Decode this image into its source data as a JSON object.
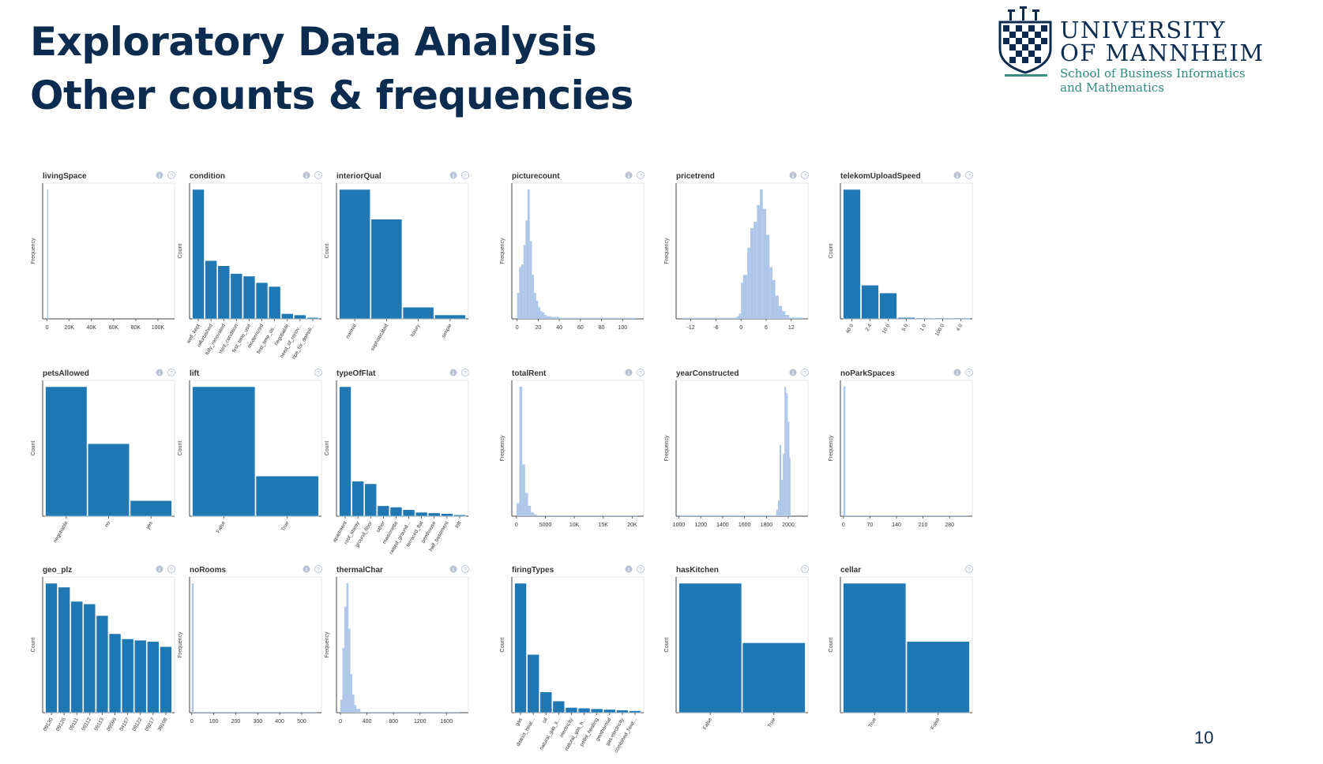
{
  "slide": {
    "title": "Exploratory Data Analysis",
    "subtitle": "Other counts & frequencies",
    "page_number": "10"
  },
  "logo": {
    "line1": "UNIVERSITY",
    "line2": "OF MANNHEIM",
    "line3": "School of Business Informatics",
    "line4": "and Mathematics"
  },
  "colors": {
    "bar": "#1f77b4",
    "hist": "#aec7e8",
    "title_text": "#0b2c4e"
  },
  "chart_data": [
    {
      "title": "livingSpace",
      "type": "bar",
      "ylabel": "Frequency",
      "xticks": [
        "0",
        "20K",
        "40K",
        "60K",
        "80K",
        "100K"
      ],
      "xrange": [
        -4000,
        115000
      ],
      "bins": [
        {
          "x0": 0,
          "x1": 1000,
          "v": 1
        }
      ],
      "ymax": 1,
      "icons": [
        "info",
        "help"
      ]
    },
    {
      "title": "condition",
      "type": "bar",
      "ylabel": "Count",
      "categories": [
        "well_kept",
        "refurbished",
        "fully_renovated",
        "mint_condition",
        "first_time_use",
        "modernized",
        "first_time_us...",
        "negotiable",
        "need_of_renov...",
        "ripe_for_demoli..."
      ],
      "values": [
        100,
        45,
        41,
        35,
        33,
        28,
        25,
        4,
        3,
        1
      ],
      "icons": [
        "info",
        "help"
      ]
    },
    {
      "title": "interiorQual",
      "type": "bar",
      "ylabel": "Count",
      "categories": [
        "normal",
        "sophisticated",
        "luxury",
        "simple"
      ],
      "values": [
        100,
        77,
        9,
        3
      ],
      "icons": [
        "info",
        "help"
      ]
    },
    {
      "title": "picturecount",
      "type": "bar",
      "ylabel": "Frequency",
      "xticks": [
        "0",
        "20",
        "40",
        "60",
        "80",
        "100"
      ],
      "xrange": [
        -5,
        120
      ],
      "bins": [
        {
          "x0": 0,
          "x1": 2,
          "v": 20
        },
        {
          "x0": 2,
          "x1": 4,
          "v": 40
        },
        {
          "x0": 4,
          "x1": 6,
          "v": 42
        },
        {
          "x0": 6,
          "x1": 8,
          "v": 57
        },
        {
          "x0": 8,
          "x1": 10,
          "v": 76
        },
        {
          "x0": 10,
          "x1": 12,
          "v": 100
        },
        {
          "x0": 12,
          "x1": 14,
          "v": 60
        },
        {
          "x0": 14,
          "x1": 16,
          "v": 34
        },
        {
          "x0": 16,
          "x1": 18,
          "v": 20
        },
        {
          "x0": 18,
          "x1": 20,
          "v": 14
        },
        {
          "x0": 20,
          "x1": 22,
          "v": 9
        },
        {
          "x0": 22,
          "x1": 24,
          "v": 6
        },
        {
          "x0": 24,
          "x1": 26,
          "v": 5
        },
        {
          "x0": 26,
          "x1": 28,
          "v": 3
        },
        {
          "x0": 28,
          "x1": 32,
          "v": 2
        },
        {
          "x0": 32,
          "x1": 40,
          "v": 1.5
        },
        {
          "x0": 40,
          "x1": 112,
          "v": 0.8
        }
      ],
      "ymax": 100,
      "icons": [
        "info",
        "help"
      ]
    },
    {
      "title": "pricetrend",
      "type": "bar",
      "ylabel": "Frequency",
      "xticks": [
        "-12",
        "-6",
        "0",
        "6",
        "12"
      ],
      "xrange": [
        -15.5,
        16
      ],
      "bins": [
        {
          "x0": -14,
          "x1": -1,
          "v": 0.8
        },
        {
          "x0": -1,
          "x1": -0.5,
          "v": 2
        },
        {
          "x0": -0.5,
          "x1": 0,
          "v": 4
        },
        {
          "x0": 0,
          "x1": 0.5,
          "v": 28
        },
        {
          "x0": 0.5,
          "x1": 1.5,
          "v": 34
        },
        {
          "x0": 1.5,
          "x1": 2.2,
          "v": 55
        },
        {
          "x0": 2.2,
          "x1": 3,
          "v": 70
        },
        {
          "x0": 3,
          "x1": 3.8,
          "v": 75
        },
        {
          "x0": 3.8,
          "x1": 4.5,
          "v": 88
        },
        {
          "x0": 4.5,
          "x1": 5.2,
          "v": 100
        },
        {
          "x0": 5.2,
          "x1": 6,
          "v": 85
        },
        {
          "x0": 6,
          "x1": 6.8,
          "v": 65
        },
        {
          "x0": 6.8,
          "x1": 7.5,
          "v": 40
        },
        {
          "x0": 7.5,
          "x1": 8.2,
          "v": 30
        },
        {
          "x0": 8.2,
          "x1": 9,
          "v": 18
        },
        {
          "x0": 9,
          "x1": 9.8,
          "v": 10
        },
        {
          "x0": 9.8,
          "x1": 10.6,
          "v": 6
        },
        {
          "x0": 10.6,
          "x1": 11.5,
          "v": 3
        },
        {
          "x0": 11.5,
          "x1": 15,
          "v": 1
        }
      ],
      "ymax": 100,
      "icons": [
        "info",
        "help"
      ]
    },
    {
      "title": "telekomUploadSpeed",
      "type": "bar",
      "ylabel": "Count",
      "categories": [
        "40.0",
        "2.4",
        "10.0",
        "5.0",
        "1.0",
        "100.0",
        "4.0"
      ],
      "values": [
        100,
        26,
        20,
        1,
        0.5,
        0.4,
        0.3
      ],
      "icons": [
        "info",
        "help"
      ]
    },
    {
      "title": "petsAllowed",
      "type": "bar",
      "ylabel": "Count",
      "categories": [
        "negotiable",
        "no",
        "yes"
      ],
      "values": [
        100,
        56,
        12
      ],
      "icons": [
        "info",
        "help"
      ]
    },
    {
      "title": "lift",
      "type": "bar",
      "ylabel": "Count",
      "categories": [
        "False",
        "True"
      ],
      "values": [
        100,
        31
      ],
      "icons": [
        "help"
      ]
    },
    {
      "title": "typeOfFlat",
      "type": "bar",
      "ylabel": "Count",
      "categories": [
        "apartment",
        "roof_storey",
        "ground_floor",
        "other",
        "maisonette",
        "raised_ground...",
        "terraced_flat",
        "penthouse",
        "half_basement",
        "loft"
      ],
      "values": [
        100,
        27,
        25,
        8,
        7,
        5,
        3,
        2.5,
        2,
        1
      ],
      "icons": [
        "info",
        "help"
      ]
    },
    {
      "title": "totalRent",
      "type": "bar",
      "ylabel": "Frequency",
      "xticks": [
        "0",
        "5000",
        "10K",
        "15K",
        "20K"
      ],
      "xrange": [
        -800,
        22000
      ],
      "bins": [
        {
          "x0": 0,
          "x1": 500,
          "v": 10
        },
        {
          "x0": 500,
          "x1": 1000,
          "v": 100
        },
        {
          "x0": 1000,
          "x1": 1500,
          "v": 40
        },
        {
          "x0": 1500,
          "x1": 2000,
          "v": 18
        },
        {
          "x0": 2000,
          "x1": 2500,
          "v": 8
        },
        {
          "x0": 2500,
          "x1": 3000,
          "v": 3
        },
        {
          "x0": 3000,
          "x1": 3500,
          "v": 1.5
        },
        {
          "x0": 3500,
          "x1": 21000,
          "v": 0.6
        }
      ],
      "ymax": 100,
      "icons": [
        "info",
        "help"
      ]
    },
    {
      "title": "yearConstructed",
      "type": "bar",
      "ylabel": "Frequency",
      "xticks": [
        "1000",
        "1200",
        "1400",
        "1600",
        "1800",
        "2000"
      ],
      "xrange": [
        975,
        2180
      ],
      "bins": [
        {
          "x0": 1000,
          "x1": 1890,
          "v": 0.7
        },
        {
          "x0": 1890,
          "x1": 1905,
          "v": 5
        },
        {
          "x0": 1905,
          "x1": 1920,
          "v": 12
        },
        {
          "x0": 1920,
          "x1": 1935,
          "v": 55
        },
        {
          "x0": 1935,
          "x1": 1950,
          "v": 28
        },
        {
          "x0": 1950,
          "x1": 1965,
          "v": 48
        },
        {
          "x0": 1965,
          "x1": 1980,
          "v": 100
        },
        {
          "x0": 1980,
          "x1": 1995,
          "v": 95
        },
        {
          "x0": 1995,
          "x1": 2010,
          "v": 73
        },
        {
          "x0": 2010,
          "x1": 2020,
          "v": 45
        }
      ],
      "ymax": 100,
      "icons": [
        "info",
        "help"
      ]
    },
    {
      "title": "noParkSpaces",
      "type": "bar",
      "ylabel": "Frequency",
      "xticks": [
        "0",
        "70",
        "140",
        "210",
        "280"
      ],
      "xrange": [
        -8,
        340
      ],
      "bins": [
        {
          "x0": 0,
          "x1": 5,
          "v": 100
        },
        {
          "x0": 5,
          "x1": 330,
          "v": 0.6
        }
      ],
      "ymax": 100,
      "icons": [
        "info",
        "help"
      ]
    },
    {
      "title": "geo_plz",
      "type": "bar",
      "ylabel": "Count",
      "categories": [
        "09130",
        "09126",
        "09111",
        "09112",
        "09113",
        "09599",
        "04157",
        "09122",
        "09217",
        "39108"
      ],
      "values": [
        100,
        97,
        86,
        84,
        75,
        61,
        57,
        56,
        55,
        51
      ],
      "icons": [
        "info",
        "help"
      ]
    },
    {
      "title": "noRooms",
      "type": "bar",
      "ylabel": "Frequency",
      "xticks": [
        "0",
        "100",
        "200",
        "300",
        "400",
        "500"
      ],
      "xrange": [
        -10,
        590
      ],
      "bins": [
        {
          "x0": 0,
          "x1": 8,
          "v": 100
        },
        {
          "x0": 8,
          "x1": 570,
          "v": 0.6
        }
      ],
      "ymax": 100,
      "icons": [
        "info",
        "help"
      ]
    },
    {
      "title": "thermalChar",
      "type": "bar",
      "ylabel": "Frequency",
      "xticks": [
        "0",
        "400",
        "800",
        "1200",
        "1600"
      ],
      "xrange": [
        -60,
        1930
      ],
      "bins": [
        {
          "x0": 0,
          "x1": 30,
          "v": 10
        },
        {
          "x0": 30,
          "x1": 60,
          "v": 50
        },
        {
          "x0": 60,
          "x1": 90,
          "v": 82
        },
        {
          "x0": 90,
          "x1": 120,
          "v": 100
        },
        {
          "x0": 120,
          "x1": 150,
          "v": 65
        },
        {
          "x0": 150,
          "x1": 180,
          "v": 30
        },
        {
          "x0": 180,
          "x1": 210,
          "v": 14
        },
        {
          "x0": 210,
          "x1": 240,
          "v": 6
        },
        {
          "x0": 240,
          "x1": 300,
          "v": 3
        },
        {
          "x0": 300,
          "x1": 1800,
          "v": 0.6
        }
      ],
      "ymax": 100,
      "icons": [
        "info",
        "help"
      ]
    },
    {
      "title": "firingTypes",
      "type": "bar",
      "ylabel": "Count",
      "categories": [
        "gas",
        "district_heat...",
        "oil",
        "natural_gas_li...",
        "electricity",
        "natural_gas_h...",
        "pellet_heating",
        "geothermal",
        "gas:electricity",
        "combined_heat..."
      ],
      "values": [
        100,
        45,
        16,
        9,
        4,
        3.5,
        3,
        2.5,
        2,
        1.5
      ],
      "icons": [
        "info",
        "help"
      ]
    },
    {
      "title": "hasKitchen",
      "type": "bar",
      "ylabel": "Count",
      "categories": [
        "False",
        "True"
      ],
      "values": [
        100,
        54
      ],
      "icons": [
        "help"
      ]
    },
    {
      "title": "cellar",
      "type": "bar",
      "ylabel": "Count",
      "categories": [
        "True",
        "False"
      ],
      "values": [
        100,
        55
      ],
      "icons": [
        "help"
      ]
    }
  ]
}
